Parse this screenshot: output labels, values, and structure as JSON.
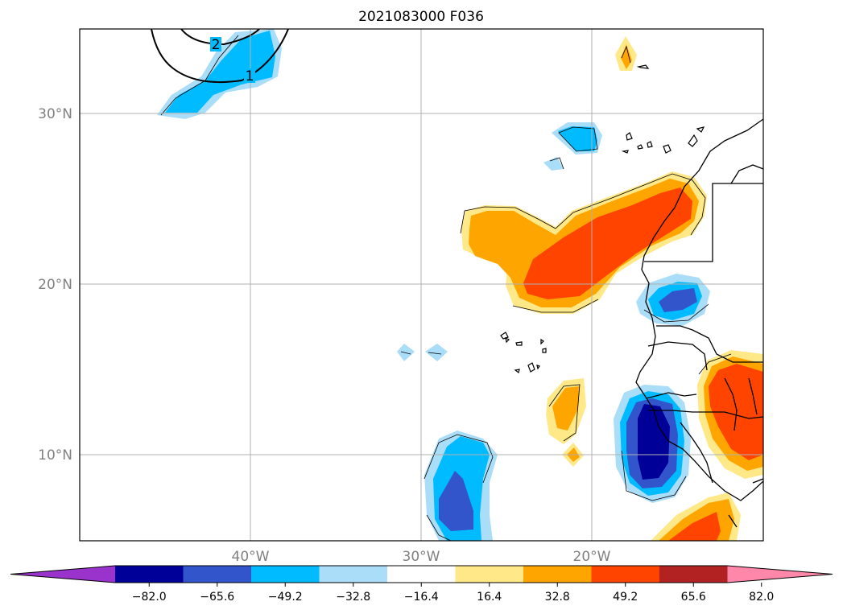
{
  "title": "2021083000 F036",
  "map": {
    "lat_labels": [
      "30°N",
      "20°N",
      "10°N"
    ],
    "lon_labels": [
      "40°W",
      "30°W",
      "20°W"
    ],
    "contour_labels": [
      "2",
      "1"
    ],
    "colors": {
      "coastline": "#000000",
      "gridline": "#b0b0b0",
      "contour_line": "#000000"
    }
  },
  "colorbar": {
    "tick_labels": [
      "−82.0",
      "−65.6",
      "−49.2",
      "−32.8",
      "−16.4",
      "16.4",
      "32.8",
      "49.2",
      "65.6",
      "82.0"
    ],
    "colors": [
      "#9933cc",
      "#000099",
      "#3355cc",
      "#00bbff",
      "#aaddf8",
      "#ffffff",
      "#ffe888",
      "#ffa500",
      "#ff4400",
      "#b22222",
      "#ff88aa"
    ],
    "extend": "both"
  }
}
